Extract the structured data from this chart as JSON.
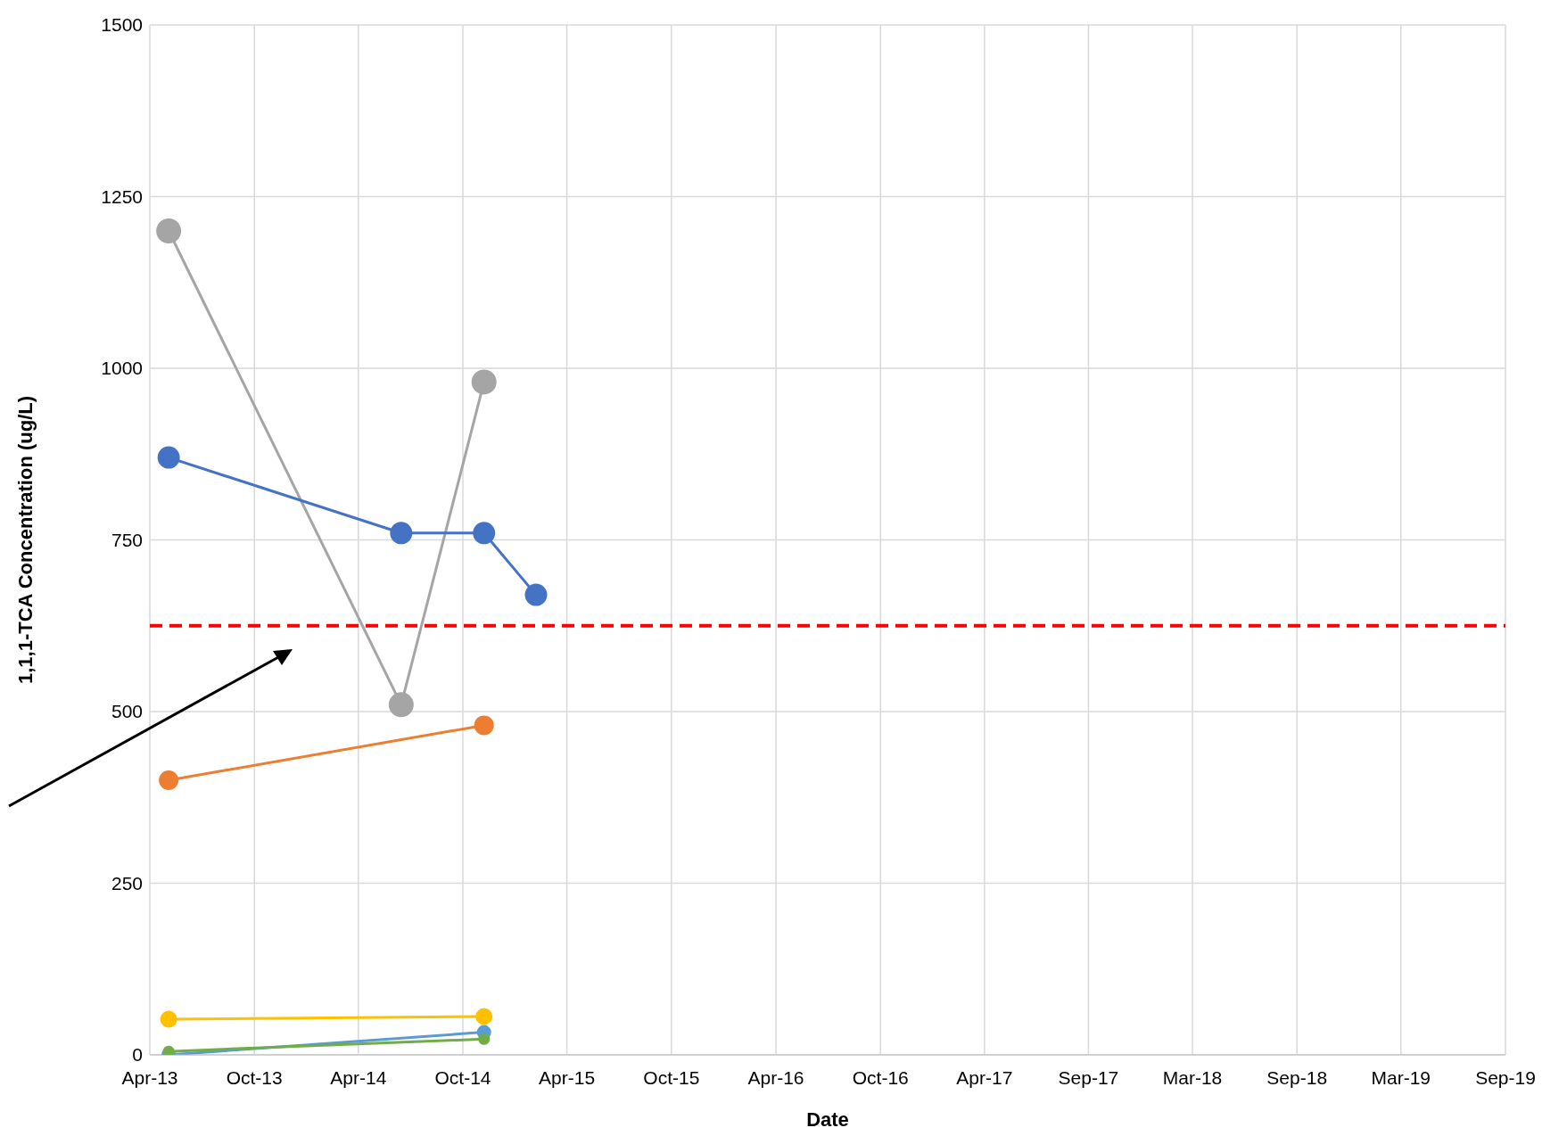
{
  "chart_data": {
    "type": "line",
    "xlabel": "Date",
    "ylabel": "1,1,1-TCA Concentration (ug/L)",
    "xlim": [
      "2013-04-01",
      "2019-09-30"
    ],
    "xticks": [
      {
        "value": "2013-04-01",
        "label": "Apr-13"
      },
      {
        "value": "2013-10-01",
        "label": "Oct-13"
      },
      {
        "value": "2014-04-01",
        "label": "Apr-14"
      },
      {
        "value": "2014-10-01",
        "label": "Oct-14"
      },
      {
        "value": "2015-04-01",
        "label": "Apr-15"
      },
      {
        "value": "2015-10-01",
        "label": "Oct-15"
      },
      {
        "value": "2016-04-01",
        "label": "Apr-16"
      },
      {
        "value": "2016-10-01",
        "label": "Oct-16"
      },
      {
        "value": "2017-04-01",
        "label": "Apr-17"
      },
      {
        "value": "2017-09-30",
        "label": "Sep-17"
      },
      {
        "value": "2018-03-31",
        "label": "Mar-18"
      },
      {
        "value": "2018-09-30",
        "label": "Sep-18"
      },
      {
        "value": "2019-03-31",
        "label": "Mar-19"
      },
      {
        "value": "2019-09-30",
        "label": "Sep-19"
      }
    ],
    "ylim": [
      0,
      1500
    ],
    "yticks": [
      0,
      250,
      500,
      750,
      1000,
      1250,
      1500
    ],
    "grid": true,
    "marker": "circle",
    "line_style": "solid",
    "series": [
      {
        "color": "#a5a5a5",
        "x": [
          "2013-05-04",
          "2014-06-15",
          "2014-11-07"
        ],
        "values": [
          1200,
          510,
          980
        ]
      },
      {
        "color": "#4472c4",
        "x": [
          "2013-05-04",
          "2014-06-15",
          "2014-11-07",
          "2015-02-06"
        ],
        "values": [
          870,
          760,
          760,
          670
        ]
      },
      {
        "color": "#ed7d31",
        "x": [
          "2013-05-04",
          "2014-11-07"
        ],
        "values": [
          400,
          480
        ]
      },
      {
        "color": "#ffc000",
        "x": [
          "2013-05-04",
          "2014-11-07"
        ],
        "values": [
          52,
          56
        ]
      },
      {
        "color": "#5b9bd5",
        "x": [
          "2013-05-04",
          "2014-11-07"
        ],
        "values": [
          0,
          33
        ]
      },
      {
        "color": "#70ad47",
        "x": [
          "2013-05-04",
          "2014-11-07"
        ],
        "values": [
          5,
          23
        ]
      }
    ],
    "ref_lines": [
      {
        "axis": "y",
        "value": 625,
        "color": "#ff0000",
        "line_style": "dashed"
      }
    ]
  }
}
